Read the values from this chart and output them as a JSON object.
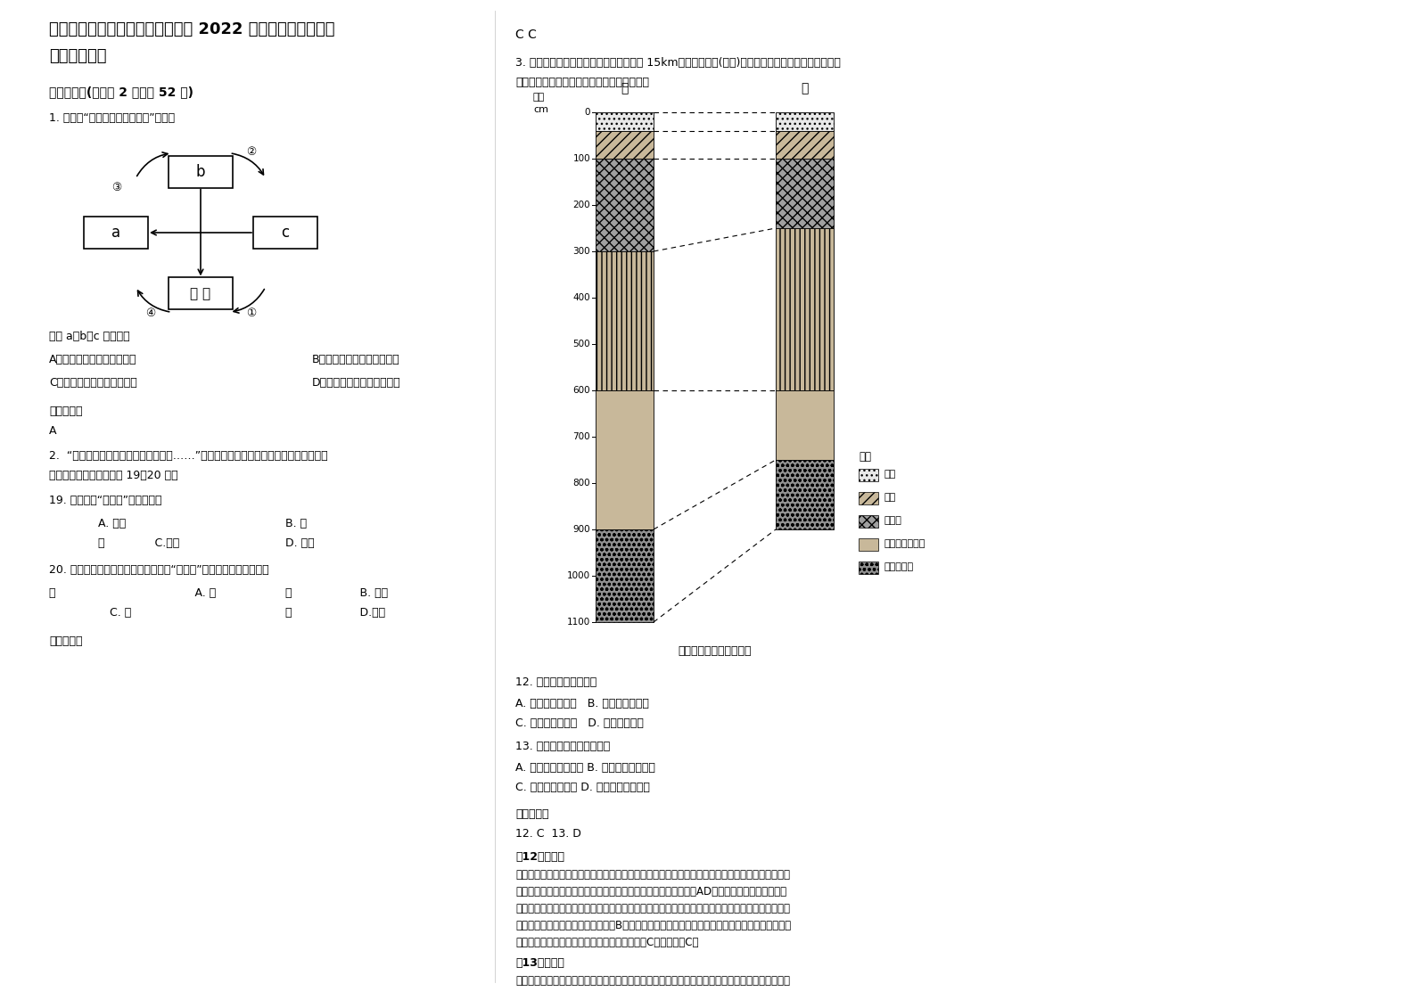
{
  "title_line1": "湖南省长沙市宁乡县第六高级中学 2022 年高三地理下学期期",
  "title_line2": "末试题含解析",
  "section1_header": "一、选择题(每小题 2 分，共 52 分)",
  "q1_text": "1. 读下图“地壳物质循环示意图”，回答",
  "q1_sub": "图中 a、b、c 分别表示",
  "q1_optA": "A．变质岩、沉积岩、岩浆岩",
  "q1_optB": "B．沉积岩、变质岩、岩浆岩",
  "q1_optC": "C．岩浆岩、变质岩、沉积岩",
  "q1_optD": "D．变质岩、岩浆岩、沉积岩",
  "ref_ans_header": "参考答案：",
  "q1_ans": "A",
  "q2_text": "2.  “天上星，亮晶晶；我在大桥望北京……”一首清脆儿歌传唱几十年，引发了人们无限",
  "q2_text2": "的遐想和憧憬。据此回答 19～20 题。",
  "q19_text": "19. 材料中的“天上星”主要指的是",
  "q19_optA": "A. 彗星",
  "q19_optB": "B. 行",
  "q19_optC": "星              C.恒星",
  "q19_optD": "D. 星云",
  "q20_text": "20. 依据材料我们可推知，在观察到的“亮晶晶”世界里共有几级天体系",
  "q20_optA": "统                                       A. 一",
  "q20_optB": "级                   B. 二级",
  "q20_optC": "                 C. 三",
  "q20_optD": "级                   D.四级",
  "ref_ans2_header": "参考答案：",
  "right_header": "C C",
  "q3_text": "3. 甲、乙两地位于同一条河流沿岸，相隔 15km，其地层剖面(下图)中各层的地质年龄相同，其中古土",
  "q3_text2": "壤层是黄土层演变来的。据此完成下面小题。",
  "q12_text": "12. 推测甲、乙所在区域",
  "q12_optA": "A. 地壳在持续下降   B. 风力沉积发生早",
  "q12_optB": "C. 曾是河漫滩地貌   D. 气候特征稳定",
  "q13_text": "13. 据图比较甲、乙两地，则",
  "q13_optA": "A. 甲地在乙地的下游 B. 甲地沉积时间更长",
  "q13_optB": "C. 黄土层海拔相同 D. 经历地质过程一致",
  "ref_ans3_header": "参考答案：",
  "q12_q13_ans": "12. C  13. D",
  "explain12_header": "【12题详解】",
  "explain12_1": "根据材料可知，古土壤层是由黄土层演变而来，表明该段时期气候变化（暖湿气候），图中存在黄土",
  "explain12_2": "冲积砂互层，表明沉积环境反复发生变化，所以地壳非持续下降，AD错；黄土为典型的风力沉积",
  "explain12_3": "物，读图可知，相比于河流相砾石而言，黄土形成较晚，风力沉积较晚，且黄土层一直持续到表土层",
  "explain12_4": "以下，表明风力沉积持续时间较长，B错；两区域地层剖面地层均有河流相砾石；河流相砾石为典型",
  "explain12_5": "的河流沉积物，表明两区域曾经是河漫滩地貌，C正确，故选C。",
  "explain13_header": "【13题详解】",
  "explain13_1": "读图可知，甲乙两地自下到上地层的排序相同，且各层的地质年龄相同，所以两地经历的地质过程一",
  "bg_color": "#ffffff",
  "text_color": "#000000",
  "depth_labels": [
    0,
    100,
    200,
    300,
    400,
    500,
    600,
    700,
    800,
    900,
    1000,
    1100
  ],
  "jia_layers": [
    {
      "thickness": 40,
      "color": "#e8e8e8",
      "hatch": "...",
      "label": "表土"
    },
    {
      "thickness": 60,
      "color": "#c8b89a",
      "hatch": "///",
      "label": "黄土"
    },
    {
      "thickness": 200,
      "color": "#a0a0a0",
      "hatch": "xxx",
      "label": "古土壤"
    },
    {
      "thickness": 300,
      "color": "#c8b89a",
      "hatch": "|||",
      "label": "黄土"
    },
    {
      "thickness": 300,
      "color": "#c8b89a",
      "hatch": "===",
      "label": "黄土冲积砂互层"
    },
    {
      "thickness": 200,
      "color": "#909090",
      "hatch": "ooo",
      "label": "河流相砾石"
    }
  ],
  "yi_layers": [
    {
      "thickness": 40,
      "color": "#e8e8e8",
      "hatch": "...",
      "label": "表土"
    },
    {
      "thickness": 60,
      "color": "#c8b89a",
      "hatch": "///",
      "label": "黄土"
    },
    {
      "thickness": 150,
      "color": "#a0a0a0",
      "hatch": "xxx",
      "label": "古土壤"
    },
    {
      "thickness": 350,
      "color": "#c8b89a",
      "hatch": "|||",
      "label": "黄土"
    },
    {
      "thickness": 150,
      "color": "#c8b89a",
      "hatch": "===",
      "label": "黄土冲积砂互层"
    },
    {
      "thickness": 150,
      "color": "#909090",
      "hatch": "ooo",
      "label": "河流相砾石"
    }
  ],
  "legend_items": [
    {
      "label": "表土",
      "color": "#e8e8e8",
      "hatch": "..."
    },
    {
      "label": "黄土",
      "color": "#c8b89a",
      "hatch": "///"
    },
    {
      "label": "古土壤",
      "color": "#a0a0a0",
      "hatch": "xxx"
    },
    {
      "label": "黄土冲积砂互层",
      "color": "#c8b89a",
      "hatch": "==="
    },
    {
      "label": "河流相砾石",
      "color": "#909090",
      "hatch": "ooo"
    }
  ]
}
